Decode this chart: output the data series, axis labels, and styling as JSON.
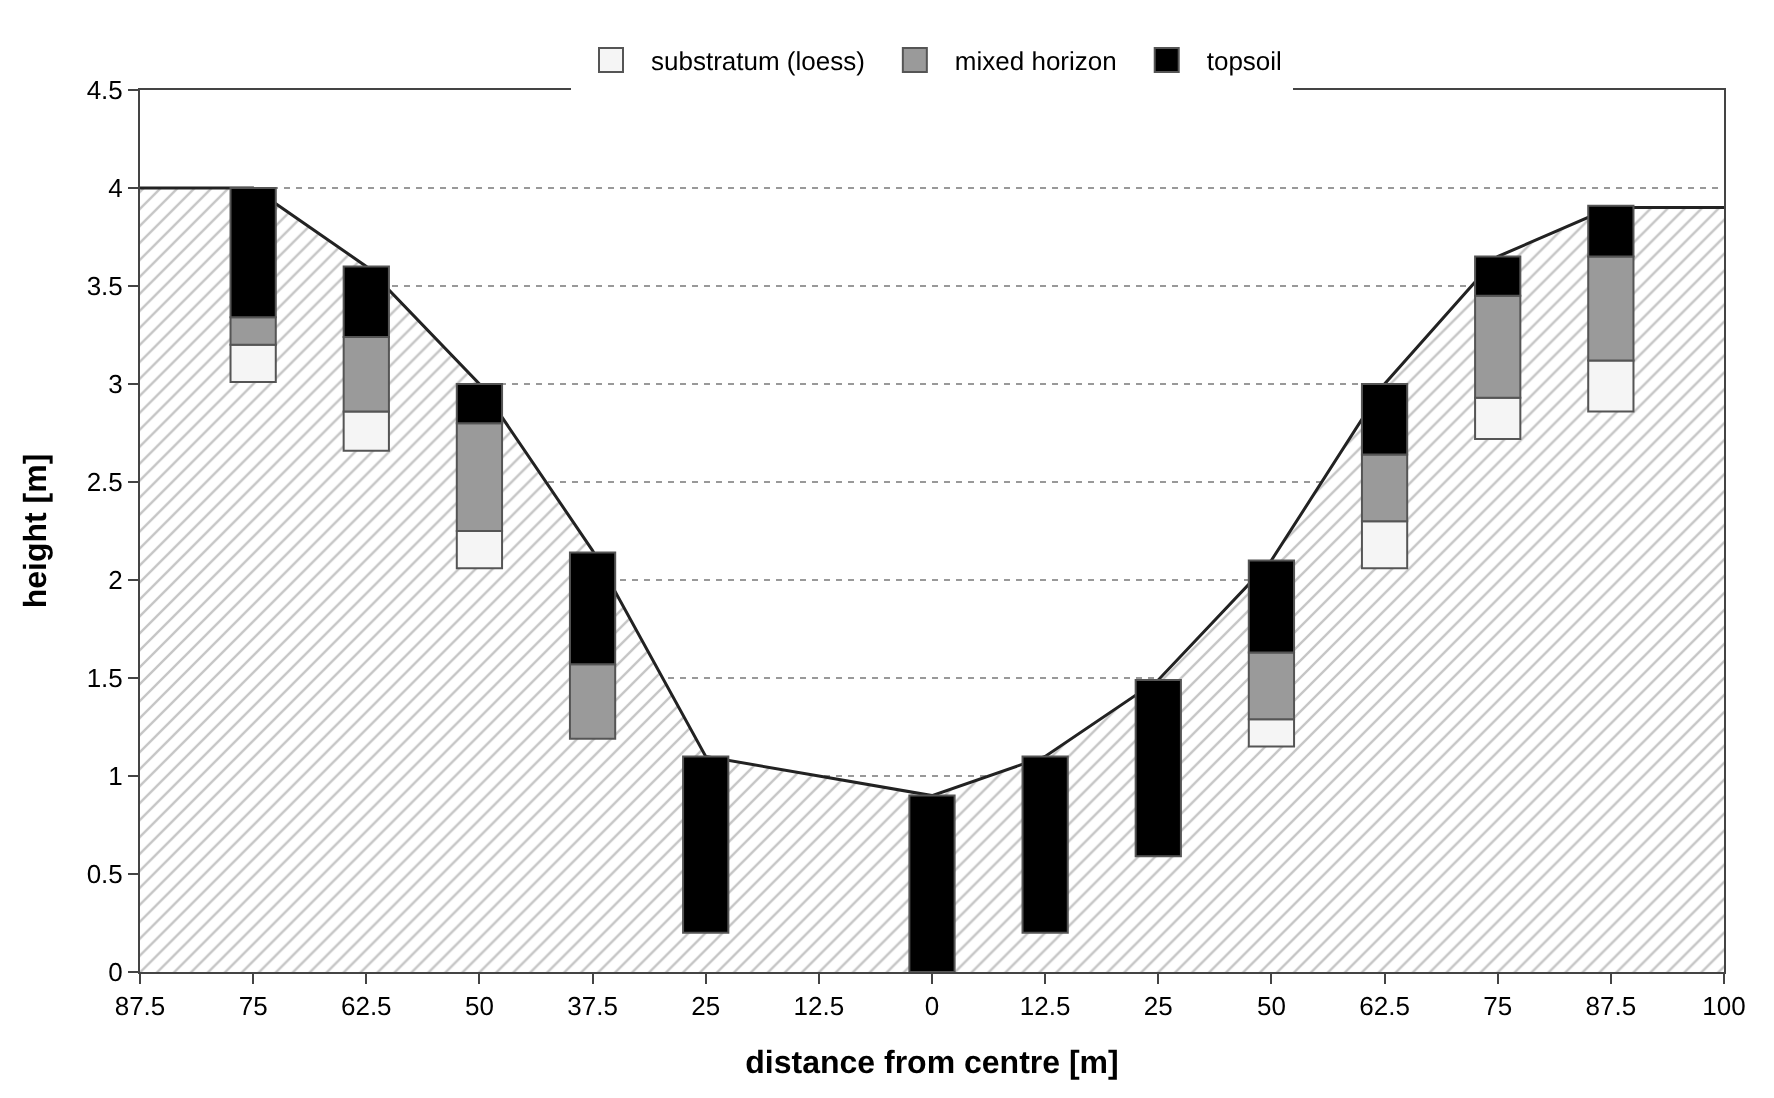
{
  "chart_data": {
    "type": "bar",
    "xlabel": "distance from centre [m]",
    "ylabel": "height [m]",
    "categories": [
      "87.5",
      "75",
      "62.5",
      "50",
      "37.5",
      "25",
      "12.5",
      "0",
      "12.5",
      "25",
      "50",
      "62.5",
      "75",
      "87.5",
      "100"
    ],
    "series": [
      {
        "type": "area",
        "color": "#8c8c8c",
        "values": [
          4.0,
          4.0,
          3.6,
          3.0,
          2.15,
          1.1,
          1.0,
          0.9,
          1.1,
          1.49,
          2.1,
          3.0,
          3.65,
          3.9,
          3.9
        ]
      },
      {
        "name": "substratum (loess)",
        "color": "#f5f5f5",
        "base": [
          null,
          3.01,
          2.66,
          2.06,
          null,
          null,
          null,
          null,
          null,
          null,
          1.15,
          2.06,
          2.72,
          2.86,
          null
        ],
        "values": [
          null,
          0.19,
          0.2,
          0.19,
          null,
          null,
          null,
          null,
          null,
          null,
          0.14,
          0.24,
          0.21,
          0.26,
          null
        ]
      },
      {
        "name": "mixed horizon",
        "color": "#9a9a9a",
        "base": [
          null,
          3.2,
          2.86,
          2.25,
          1.19,
          null,
          null,
          null,
          null,
          null,
          1.29,
          2.3,
          2.93,
          3.12,
          null
        ],
        "values": [
          null,
          0.14,
          0.38,
          0.55,
          0.38,
          null,
          null,
          null,
          null,
          null,
          0.34,
          0.34,
          0.52,
          0.53,
          null
        ]
      },
      {
        "name": "topsoil",
        "color": "#000000",
        "base": [
          null,
          3.34,
          3.24,
          2.8,
          1.57,
          0.2,
          null,
          0,
          0.2,
          0.59,
          1.63,
          2.64,
          3.45,
          3.65,
          null
        ],
        "values": [
          null,
          0.66,
          0.36,
          0.2,
          0.57,
          0.9,
          null,
          0.9,
          0.9,
          0.9,
          0.47,
          0.36,
          0.2,
          0.26,
          null
        ]
      }
    ],
    "ylim": [
      0,
      4.5
    ],
    "yticks": [
      0,
      0.5,
      1,
      1.5,
      2,
      2.5,
      3,
      3.5,
      4,
      4.5
    ],
    "grid": "y",
    "legend": "top"
  }
}
